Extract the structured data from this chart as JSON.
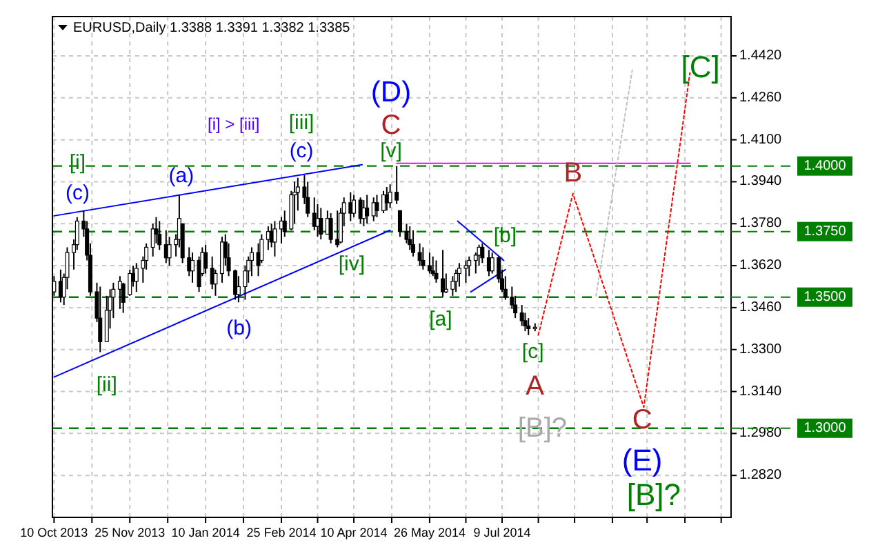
{
  "chart_data": {
    "type": "candlestick",
    "title": "EURUSD,Daily 1.3388 1.3391 1.3382 1.3385",
    "x": [
      "2013-10-10",
      "2013-10-14",
      "2013-10-16",
      "2013-10-18",
      "2013-10-22",
      "2013-10-24",
      "2013-10-28",
      "2013-10-30",
      "2013-11-01",
      "2013-11-05",
      "2013-11-07",
      "2013-11-11",
      "2013-11-13",
      "2013-11-15",
      "2013-11-19",
      "2013-11-21",
      "2013-11-25",
      "2013-11-27",
      "2013-11-29",
      "2013-12-03",
      "2013-12-05",
      "2013-12-09",
      "2013-12-11",
      "2013-12-13",
      "2013-12-17",
      "2013-12-19",
      "2013-12-23",
      "2013-12-25",
      "2013-12-27",
      "2013-12-31",
      "2014-01-02",
      "2014-01-06",
      "2014-01-08",
      "2014-01-10",
      "2014-01-14",
      "2014-01-16",
      "2014-01-20",
      "2014-01-22",
      "2014-01-24",
      "2014-01-28",
      "2014-01-30",
      "2014-02-03",
      "2014-02-05",
      "2014-02-07",
      "2014-02-11",
      "2014-02-13",
      "2014-02-17",
      "2014-02-19",
      "2014-02-21",
      "2014-02-25",
      "2014-02-27",
      "2014-03-03",
      "2014-03-05",
      "2014-03-07",
      "2014-03-11",
      "2014-03-13",
      "2014-03-17",
      "2014-03-19",
      "2014-03-21",
      "2014-03-25",
      "2014-03-27",
      "2014-03-31",
      "2014-04-02",
      "2014-04-04",
      "2014-04-08",
      "2014-04-10",
      "2014-04-14",
      "2014-04-16",
      "2014-04-18",
      "2014-04-22",
      "2014-04-24",
      "2014-04-28",
      "2014-04-30",
      "2014-05-02",
      "2014-05-06",
      "2014-05-08",
      "2014-05-12",
      "2014-05-14",
      "2014-05-16",
      "2014-05-20",
      "2014-05-22",
      "2014-05-26",
      "2014-05-28",
      "2014-05-30",
      "2014-06-03",
      "2014-06-05",
      "2014-06-09",
      "2014-06-11",
      "2014-06-13",
      "2014-06-17",
      "2014-06-19",
      "2014-06-23",
      "2014-06-25",
      "2014-06-27",
      "2014-07-01",
      "2014-07-03",
      "2014-07-07",
      "2014-07-09",
      "2014-07-11",
      "2014-07-15",
      "2014-07-17",
      "2014-07-21",
      "2014-07-23",
      "2014-07-25",
      "2014-07-29"
    ],
    "ohlc": [
      [
        1.352,
        1.358,
        1.3505,
        1.356
      ],
      [
        1.356,
        1.3605,
        1.348,
        1.35
      ],
      [
        1.35,
        1.359,
        1.347,
        1.3575
      ],
      [
        1.3575,
        1.369,
        1.353,
        1.367
      ],
      [
        1.367,
        1.372,
        1.3605,
        1.37
      ],
      [
        1.37,
        1.3805,
        1.368,
        1.379
      ],
      [
        1.379,
        1.383,
        1.373,
        1.376
      ],
      [
        1.376,
        1.379,
        1.364,
        1.366
      ],
      [
        1.366,
        1.3705,
        1.3505,
        1.352
      ],
      [
        1.352,
        1.3555,
        1.3405,
        1.342
      ],
      [
        1.342,
        1.354,
        1.329,
        1.333
      ],
      [
        1.333,
        1.3505,
        1.333,
        1.345
      ],
      [
        1.345,
        1.353,
        1.338,
        1.35
      ],
      [
        1.35,
        1.3555,
        1.342,
        1.353
      ],
      [
        1.353,
        1.358,
        1.3455,
        1.356
      ],
      [
        1.355,
        1.3555,
        1.344,
        1.348
      ],
      [
        1.351,
        1.3605,
        1.3505,
        1.359
      ],
      [
        1.359,
        1.362,
        1.354,
        1.356
      ],
      [
        1.356,
        1.363,
        1.352,
        1.361
      ],
      [
        1.361,
        1.3655,
        1.3555,
        1.364
      ],
      [
        1.364,
        1.3705,
        1.3605,
        1.369
      ],
      [
        1.369,
        1.378,
        1.3655,
        1.376
      ],
      [
        1.376,
        1.3805,
        1.3705,
        1.374
      ],
      [
        1.374,
        1.379,
        1.368,
        1.37
      ],
      [
        1.37,
        1.3755,
        1.363,
        1.365
      ],
      [
        1.365,
        1.373,
        1.362,
        1.37
      ],
      [
        1.37,
        1.374,
        1.3655,
        1.372
      ],
      [
        1.372,
        1.389,
        1.369,
        1.38
      ],
      [
        1.378,
        1.378,
        1.363,
        1.365
      ],
      [
        1.365,
        1.369,
        1.358,
        1.36
      ],
      [
        1.36,
        1.367,
        1.3555,
        1.364
      ],
      [
        1.364,
        1.3655,
        1.352,
        1.354
      ],
      [
        1.359,
        1.369,
        1.358,
        1.367
      ],
      [
        1.367,
        1.37,
        1.359,
        1.361
      ],
      [
        1.361,
        1.3655,
        1.353,
        1.355
      ],
      [
        1.355,
        1.3605,
        1.3505,
        1.359
      ],
      [
        1.359,
        1.373,
        1.3555,
        1.371
      ],
      [
        1.371,
        1.374,
        1.362,
        1.365
      ],
      [
        1.365,
        1.3705,
        1.358,
        1.36
      ],
      [
        1.36,
        1.3605,
        1.349,
        1.351
      ],
      [
        1.351,
        1.358,
        1.348,
        1.354
      ],
      [
        1.354,
        1.362,
        1.349,
        1.36
      ],
      [
        1.36,
        1.3655,
        1.3555,
        1.364
      ],
      [
        1.364,
        1.369,
        1.358,
        1.367
      ],
      [
        1.367,
        1.3705,
        1.358,
        1.362
      ],
      [
        1.364,
        1.374,
        1.363,
        1.372
      ],
      [
        1.372,
        1.377,
        1.368,
        1.375
      ],
      [
        1.375,
        1.378,
        1.369,
        1.371
      ],
      [
        1.371,
        1.379,
        1.3655,
        1.376
      ],
      [
        1.376,
        1.3805,
        1.3705,
        1.379
      ],
      [
        1.379,
        1.383,
        1.373,
        1.375
      ],
      [
        1.376,
        1.3905,
        1.3755,
        1.389
      ],
      [
        1.389,
        1.394,
        1.378,
        1.39
      ],
      [
        1.39,
        1.3955,
        1.383,
        1.392
      ],
      [
        1.392,
        1.3965,
        1.3855,
        1.388
      ],
      [
        1.388,
        1.394,
        1.3805,
        1.382
      ],
      [
        1.382,
        1.388,
        1.3755,
        1.377
      ],
      [
        1.377,
        1.3855,
        1.373,
        1.38
      ],
      [
        1.38,
        1.384,
        1.372,
        1.374
      ],
      [
        1.374,
        1.383,
        1.374,
        1.38
      ],
      [
        1.38,
        1.382,
        1.3705,
        1.372
      ],
      [
        1.372,
        1.383,
        1.369,
        1.37
      ],
      [
        1.371,
        1.384,
        1.3705,
        1.382
      ],
      [
        1.382,
        1.388,
        1.377,
        1.386
      ],
      [
        1.386,
        1.39,
        1.379,
        1.382
      ],
      [
        1.382,
        1.389,
        1.3805,
        1.387
      ],
      [
        1.387,
        1.388,
        1.378,
        1.38
      ],
      [
        1.38,
        1.387,
        1.377,
        1.384
      ],
      [
        1.384,
        1.389,
        1.378,
        1.381
      ],
      [
        1.381,
        1.388,
        1.379,
        1.386
      ],
      [
        1.386,
        1.389,
        1.3805,
        1.383
      ],
      [
        1.383,
        1.3905,
        1.382,
        1.389
      ],
      [
        1.389,
        1.392,
        1.383,
        1.386
      ],
      [
        1.386,
        1.393,
        1.384,
        1.39
      ],
      [
        1.39,
        1.4,
        1.3855,
        1.387
      ],
      [
        1.383,
        1.383,
        1.373,
        1.375
      ],
      [
        1.375,
        1.378,
        1.3705,
        1.372
      ],
      [
        1.372,
        1.377,
        1.368,
        1.37
      ],
      [
        1.37,
        1.3755,
        1.3655,
        1.367
      ],
      [
        1.367,
        1.3705,
        1.362,
        1.364
      ],
      [
        1.364,
        1.369,
        1.3605,
        1.362
      ],
      [
        1.362,
        1.367,
        1.359,
        1.36
      ],
      [
        1.36,
        1.3655,
        1.358,
        1.359
      ],
      [
        1.359,
        1.364,
        1.3555,
        1.357
      ],
      [
        1.357,
        1.368,
        1.35,
        1.352
      ],
      [
        1.352,
        1.359,
        1.3515,
        1.353
      ],
      [
        1.353,
        1.358,
        1.3505,
        1.356
      ],
      [
        1.356,
        1.3605,
        1.352,
        1.359
      ],
      [
        1.359,
        1.363,
        1.354,
        1.361
      ],
      [
        1.361,
        1.364,
        1.3555,
        1.362
      ],
      [
        1.362,
        1.3655,
        1.358,
        1.364
      ],
      [
        1.364,
        1.367,
        1.359,
        1.366
      ],
      [
        1.366,
        1.37,
        1.362,
        1.369
      ],
      [
        1.369,
        1.3705,
        1.363,
        1.365
      ],
      [
        1.365,
        1.368,
        1.358,
        1.36
      ],
      [
        1.36,
        1.367,
        1.359,
        1.365
      ],
      [
        1.365,
        1.3655,
        1.3555,
        1.357
      ],
      [
        1.357,
        1.3605,
        1.352,
        1.353
      ],
      [
        1.353,
        1.358,
        1.349,
        1.35
      ],
      [
        1.35,
        1.354,
        1.3455,
        1.347
      ],
      [
        1.347,
        1.3505,
        1.342,
        1.344
      ],
      [
        1.344,
        1.347,
        1.339,
        1.341
      ],
      [
        1.341,
        1.344,
        1.337,
        1.339
      ],
      [
        1.339,
        1.342,
        1.3355,
        1.338
      ],
      [
        1.338,
        1.34,
        1.337,
        1.3385
      ]
    ],
    "series": [
      {
        "type": "line",
        "color": "#0000ff",
        "line_style": "solid",
        "x": [
          "2013-10-10",
          "2014-04-15"
        ],
        "values": [
          1.381,
          1.4005
        ]
      },
      {
        "type": "line",
        "color": "#0000ff",
        "line_style": "solid",
        "x": [
          "2013-10-10",
          "2014-05-02"
        ],
        "values": [
          1.3195,
          1.3755
        ]
      },
      {
        "type": "line",
        "color": "#0000ff",
        "line_style": "solid",
        "x": [
          "2014-06-12",
          "2014-07-10"
        ],
        "values": [
          1.379,
          1.364
        ]
      },
      {
        "type": "line",
        "color": "#0000ff",
        "line_style": "solid",
        "x": [
          "2014-06-20",
          "2014-07-11"
        ],
        "values": [
          1.352,
          1.3605
        ]
      },
      {
        "type": "line",
        "color": "#ff00ff",
        "line_style": "solid",
        "x": [
          "2014-05-06",
          "2014-10-31"
        ],
        "values": [
          1.401,
          1.401
        ]
      },
      {
        "type": "line",
        "color": "#c0c0c0",
        "line_style": "dotted",
        "x": [
          "2014-09-04",
          "2014-09-26"
        ],
        "values": [
          1.3505,
          1.4365
        ]
      },
      {
        "type": "line",
        "color": "#ff0000",
        "line_style": "dotted",
        "x": [
          "2014-07-31",
          "2014-08-21",
          "2014-10-03",
          "2014-10-31"
        ],
        "values": [
          1.3355,
          1.3895,
          1.308,
          1.4355
        ]
      }
    ],
    "xlim": [
      "2013-10-09",
      "2014-11-25"
    ],
    "ylim": [
      1.266,
      1.457
    ],
    "xticks": [
      {
        "value": "2013-10-10",
        "label": "10 Oct 2013"
      },
      {
        "value": "2013-11-02",
        "label": null
      },
      {
        "value": "2013-11-25",
        "label": "25 Nov 2013"
      },
      {
        "value": "2013-12-18",
        "label": null
      },
      {
        "value": "2014-01-10",
        "label": "10 Jan 2014"
      },
      {
        "value": "2014-02-02",
        "label": null
      },
      {
        "value": "2014-02-25",
        "label": "25 Feb 2014"
      },
      {
        "value": "2014-03-19",
        "label": null
      },
      {
        "value": "2014-04-10",
        "label": "10 Apr 2014"
      },
      {
        "value": "2014-05-03",
        "label": null
      },
      {
        "value": "2014-05-26",
        "label": "26 May 2014"
      },
      {
        "value": "2014-06-17",
        "label": null
      },
      {
        "value": "2014-07-09",
        "label": "9 Jul 2014"
      },
      {
        "value": "2014-07-31",
        "label": null
      },
      {
        "value": "2014-08-22",
        "label": null
      },
      {
        "value": "2014-09-14",
        "label": null
      },
      {
        "value": "2014-10-05",
        "label": null
      },
      {
        "value": "2014-10-28",
        "label": null
      },
      {
        "value": "2014-11-19",
        "label": null
      }
    ],
    "yticks": [
      {
        "value": 1.442,
        "label": "1.4420"
      },
      {
        "value": 1.426,
        "label": "1.4260"
      },
      {
        "value": 1.41,
        "label": "1.4100"
      },
      {
        "value": 1.394,
        "label": "1.3940"
      },
      {
        "value": 1.378,
        "label": "1.3780"
      },
      {
        "value": 1.362,
        "label": "1.3620"
      },
      {
        "value": 1.346,
        "label": "1.3460"
      },
      {
        "value": 1.33,
        "label": "1.3300"
      },
      {
        "value": 1.314,
        "label": "1.3140"
      },
      {
        "value": 1.298,
        "label": "1.2980"
      },
      {
        "value": 1.282,
        "label": "1.2820"
      }
    ],
    "grid": true,
    "ref_lines": [
      {
        "axis": "y",
        "value": 1.4,
        "label": "1.4000",
        "color": "#008000",
        "line_style": "dashed"
      },
      {
        "axis": "y",
        "value": 1.375,
        "label": "1.3750",
        "color": "#008000",
        "line_style": "dashed"
      },
      {
        "axis": "y",
        "value": 1.35,
        "label": "1.3500",
        "color": "#008000",
        "line_style": "dashed"
      },
      {
        "axis": "y",
        "value": 1.3,
        "label": "1.3000",
        "color": "#008000",
        "line_style": "dashed"
      }
    ],
    "annotations": [
      "[i]",
      "(c)",
      "[ii]",
      "(a)",
      "(b)",
      "[i] > [iii]",
      "[iii]",
      "(c)",
      "(D)",
      "C",
      "[v]",
      "[iv]",
      "[a]",
      "[b]",
      "[c]",
      "A",
      "[B]?",
      "B",
      "C",
      "(E)",
      "[B]?",
      "[C]"
    ]
  }
}
